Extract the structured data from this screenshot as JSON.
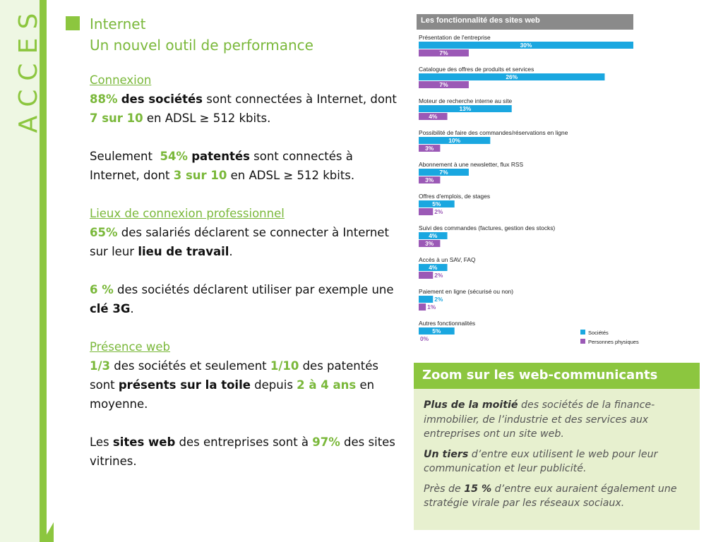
{
  "sidebar": {
    "letters": [
      "A",
      "C",
      "C",
      "E",
      "S"
    ]
  },
  "header": {
    "title": "Internet",
    "subtitle": "Un nouvel outil de performance"
  },
  "content": {
    "connexion_heading": "Connexion",
    "p1": {
      "a": "88%",
      "b": "des sociétés",
      "c": " sont connectées à Internet, dont ",
      "d": "7 sur 10",
      "e": " en ADSL ≥ 512 kbits."
    },
    "p2": {
      "a": "Seulement  ",
      "b": "54%",
      "c": "patentés",
      "d": " sont connectés à Internet, dont ",
      "e": "3 sur 10",
      "f": " en ADSL ≥ 512 kbits."
    },
    "lieux_heading": "Lieux de connexion professionnel",
    "p3": {
      "a": "65%",
      "b": " des salariés déclarent se connecter à Internet sur leur ",
      "c": "lieu de travail",
      "d": "."
    },
    "p4": {
      "a": "6 %",
      "b": " des sociétés déclarent utiliser par exemple une ",
      "c": "clé 3G",
      "d": "."
    },
    "presence_heading": "Présence web",
    "p5": {
      "a": "1/3",
      "b": " des sociétés et seulement ",
      "c": "1/10",
      "d": " des patentés sont ",
      "e": "présents sur la toile",
      "f": " depuis ",
      "g": "2 à 4 ans",
      "h": " en moyenne."
    },
    "p6": {
      "a": "Les ",
      "b": "sites web",
      "c": " des entreprises sont à ",
      "d": "97%",
      "e": " des sites vitrines."
    }
  },
  "chart_data": {
    "type": "bar",
    "title": "Les fonctionnalité des sites web",
    "categories": [
      "Présentation de l'entreprise",
      "Catalogue des offres de produits et services",
      "Moteur de recherche interne au site",
      "Possibilité de faire des commandes/réservations en ligne",
      "Abonnement à une newsletter, flux RSS",
      "Offres d'emplois, de stages",
      "Suivi des commandes (factures, gestion des stocks)",
      "Accès à un SAV, FAQ",
      "Paiement en ligne (sécurisé ou non)",
      "Autres fonctionnalités"
    ],
    "series": [
      {
        "name": "Sociétés",
        "color": "#1aa7e0",
        "values": [
          30,
          26,
          13,
          10,
          7,
          5,
          4,
          4,
          2,
          5
        ],
        "labels": [
          "30%",
          "26%",
          "13%",
          "10%",
          "7%",
          "5%",
          "4%",
          "4%",
          "2%",
          "5%"
        ]
      },
      {
        "name": "Personnes physiques",
        "color": "#9b59b6",
        "values": [
          7,
          7,
          4,
          3,
          3,
          2,
          3,
          2,
          1,
          0
        ],
        "labels": [
          "7%",
          "7%",
          "4%",
          "3%",
          "3%",
          "2%",
          "3%",
          "2%",
          "1%",
          "0%"
        ]
      }
    ],
    "xlim": [
      0,
      30
    ],
    "legend": "bottom-right"
  },
  "zoom": {
    "title": "Zoom sur les web-communicants",
    "p1": {
      "a": "Plus de la moitié",
      "b": " des sociétés de la finance-immobilier, de l’industrie et des services aux entreprises ont un site web."
    },
    "p2": {
      "a": "Un tiers",
      "b": " d’entre eux utilisent le web pour leur communication et leur publicité."
    },
    "p3": {
      "a": "Près de ",
      "b": "15 %",
      "c": " d’entre eux auraient également une stratégie virale par les réseaux sociaux."
    }
  }
}
